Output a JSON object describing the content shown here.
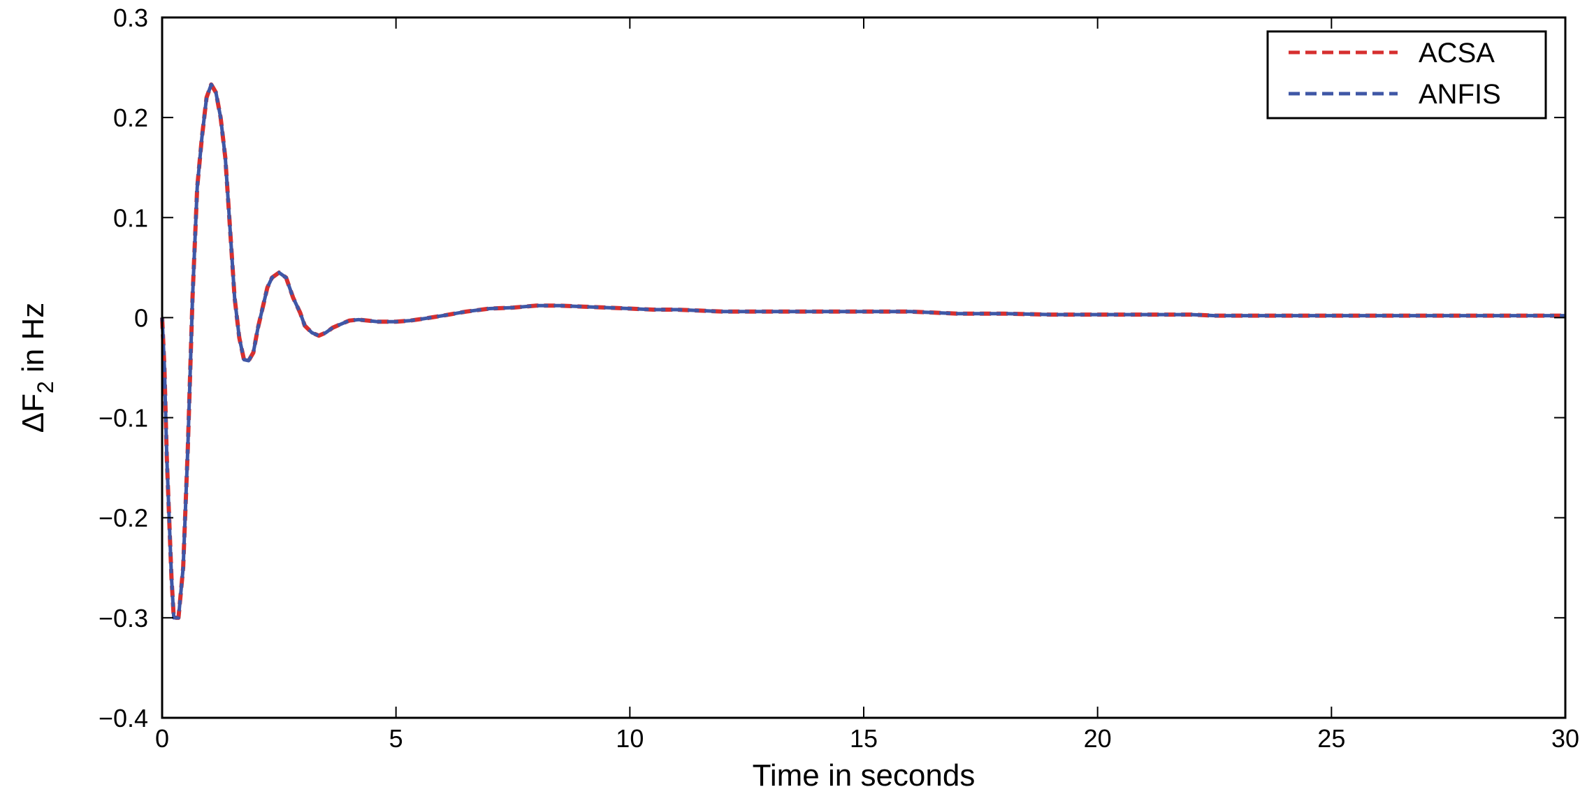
{
  "chart_data": {
    "type": "line",
    "title": "",
    "xlabel": "Time in seconds",
    "ylabel": {
      "prefix": "ΔF",
      "subscript": "2",
      "suffix": " in Hz"
    },
    "xlim": [
      0,
      30
    ],
    "ylim": [
      -0.4,
      0.3
    ],
    "xticks": [
      0,
      5,
      10,
      15,
      20,
      25,
      30
    ],
    "xtick_labels": [
      "0",
      "5",
      "10",
      "15",
      "20",
      "25",
      "30"
    ],
    "yticks": [
      0.3,
      0.2,
      0.1,
      0,
      -0.1,
      -0.2,
      -0.3,
      -0.4
    ],
    "ytick_labels": [
      "0.3",
      "0.2",
      "0.1",
      "0",
      "−0.1",
      "−0.2",
      "−0.3",
      "−0.4"
    ],
    "grid": false,
    "legend_position": "top-right",
    "series": [
      {
        "name": "ACSA",
        "color": "#d62f2f",
        "dash": "dashed",
        "x": [
          0,
          0.05,
          0.1,
          0.2,
          0.25,
          0.35,
          0.45,
          0.55,
          0.65,
          0.75,
          0.85,
          0.95,
          1.05,
          1.15,
          1.25,
          1.35,
          1.45,
          1.55,
          1.65,
          1.75,
          1.85,
          1.95,
          2.05,
          2.15,
          2.25,
          2.35,
          2.5,
          2.65,
          2.8,
          2.95,
          3.05,
          3.2,
          3.35,
          3.5,
          3.65,
          3.8,
          4.0,
          4.2,
          4.4,
          4.6,
          4.8,
          5.0,
          5.3,
          5.6,
          6.0,
          6.5,
          7.0,
          7.5,
          8.0,
          8.5,
          9.0,
          9.5,
          10.0,
          10.5,
          11.0,
          11.5,
          12.0,
          13.0,
          14.0,
          15.0,
          16.0,
          16.5,
          17.0,
          18.0,
          19.0,
          20.0,
          21.0,
          22.0,
          22.5,
          23.0,
          24.0,
          25.0,
          26.0,
          27.0,
          28.0,
          29.0,
          30.0
        ],
        "y": [
          0,
          -0.05,
          -0.14,
          -0.26,
          -0.3,
          -0.3,
          -0.25,
          -0.13,
          0.02,
          0.13,
          0.18,
          0.22,
          0.233,
          0.225,
          0.2,
          0.16,
          0.09,
          0.02,
          -0.02,
          -0.042,
          -0.043,
          -0.035,
          -0.01,
          0.01,
          0.03,
          0.04,
          0.045,
          0.04,
          0.02,
          0.005,
          -0.008,
          -0.015,
          -0.018,
          -0.015,
          -0.01,
          -0.007,
          -0.003,
          -0.002,
          -0.003,
          -0.004,
          -0.004,
          -0.004,
          -0.003,
          -0.001,
          0.002,
          0.006,
          0.009,
          0.01,
          0.012,
          0.012,
          0.011,
          0.01,
          0.009,
          0.008,
          0.008,
          0.007,
          0.006,
          0.006,
          0.006,
          0.006,
          0.006,
          0.005,
          0.004,
          0.004,
          0.003,
          0.003,
          0.003,
          0.003,
          0.002,
          0.002,
          0.002,
          0.002,
          0.002,
          0.002,
          0.002,
          0.002,
          0.002
        ]
      },
      {
        "name": "ANFIS",
        "color": "#3f57a6",
        "dash": "dashed",
        "x": [
          0,
          0.05,
          0.1,
          0.2,
          0.25,
          0.35,
          0.45,
          0.55,
          0.65,
          0.75,
          0.85,
          0.95,
          1.05,
          1.15,
          1.25,
          1.35,
          1.45,
          1.55,
          1.65,
          1.75,
          1.85,
          1.95,
          2.05,
          2.15,
          2.25,
          2.35,
          2.5,
          2.65,
          2.8,
          2.95,
          3.05,
          3.2,
          3.35,
          3.5,
          3.65,
          3.8,
          4.0,
          4.2,
          4.4,
          4.6,
          4.8,
          5.0,
          5.3,
          5.6,
          6.0,
          6.5,
          7.0,
          7.5,
          8.0,
          8.5,
          9.0,
          9.5,
          10.0,
          10.5,
          11.0,
          11.5,
          12.0,
          13.0,
          14.0,
          15.0,
          16.0,
          16.5,
          17.0,
          18.0,
          19.0,
          20.0,
          21.0,
          22.0,
          22.5,
          23.0,
          24.0,
          25.0,
          26.0,
          27.0,
          28.0,
          29.0,
          30.0
        ],
        "y": [
          0,
          -0.05,
          -0.14,
          -0.26,
          -0.3,
          -0.3,
          -0.25,
          -0.13,
          0.02,
          0.13,
          0.18,
          0.22,
          0.233,
          0.225,
          0.2,
          0.16,
          0.09,
          0.02,
          -0.02,
          -0.042,
          -0.043,
          -0.035,
          -0.01,
          0.01,
          0.03,
          0.04,
          0.045,
          0.04,
          0.02,
          0.005,
          -0.008,
          -0.015,
          -0.018,
          -0.015,
          -0.01,
          -0.007,
          -0.003,
          -0.002,
          -0.003,
          -0.004,
          -0.004,
          -0.004,
          -0.003,
          -0.001,
          0.002,
          0.006,
          0.009,
          0.01,
          0.012,
          0.012,
          0.011,
          0.01,
          0.009,
          0.008,
          0.008,
          0.007,
          0.006,
          0.006,
          0.006,
          0.006,
          0.006,
          0.005,
          0.004,
          0.004,
          0.003,
          0.003,
          0.003,
          0.003,
          0.002,
          0.002,
          0.002,
          0.002,
          0.002,
          0.002,
          0.002,
          0.002,
          0.002
        ]
      }
    ]
  }
}
